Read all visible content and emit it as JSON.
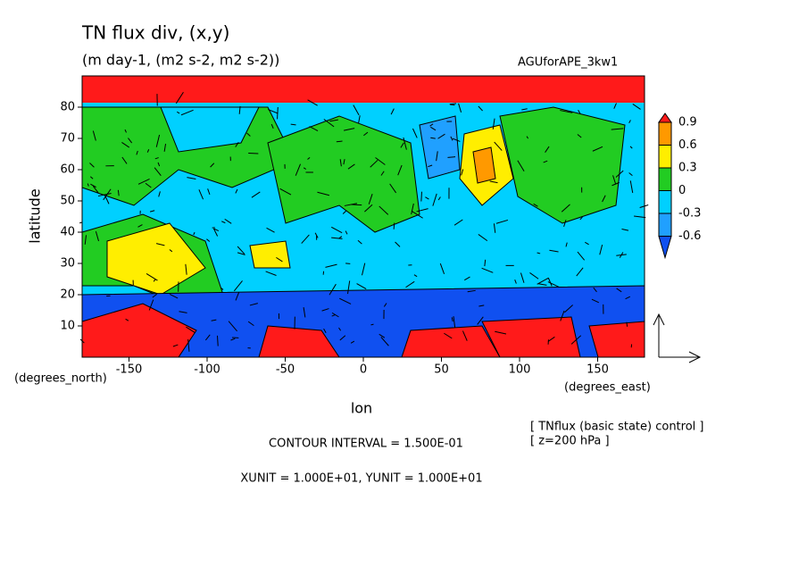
{
  "chart_data": {
    "type": "contour",
    "title": "TN flux div, (x,y)",
    "subtitle": "(m day-1, (m2 s-2, m2 s-2))",
    "dataset": "AGUforAPE_3kw1",
    "x_label": "lon",
    "y_label": "latitude",
    "x_units": "(degrees_east)",
    "y_units": "(degrees_north)",
    "xlim": [
      -180,
      180
    ],
    "xticks": [
      -150,
      -100,
      -50,
      0,
      50,
      100,
      150
    ],
    "ylim": [
      0,
      90
    ],
    "yticks": [
      10,
      20,
      30,
      40,
      50,
      60,
      70,
      80
    ],
    "levels": [
      -0.6,
      -0.3,
      0,
      0.3,
      0.6,
      0.9
    ],
    "colors": [
      "#1050f0",
      "#20a0ff",
      "#00d0ff",
      "#22cc22",
      "#ffee00",
      "#ff9900",
      "#ff1a1a"
    ],
    "contour_interval": "CONTOUR INTERVAL = 1.500E-01",
    "vector_units": "XUNIT = 1.000E+01, YUNIT = 1.000E+01",
    "notes": [
      "[ TNflux (basic state) control ]",
      "[ z=200 hPa ]"
    ]
  }
}
